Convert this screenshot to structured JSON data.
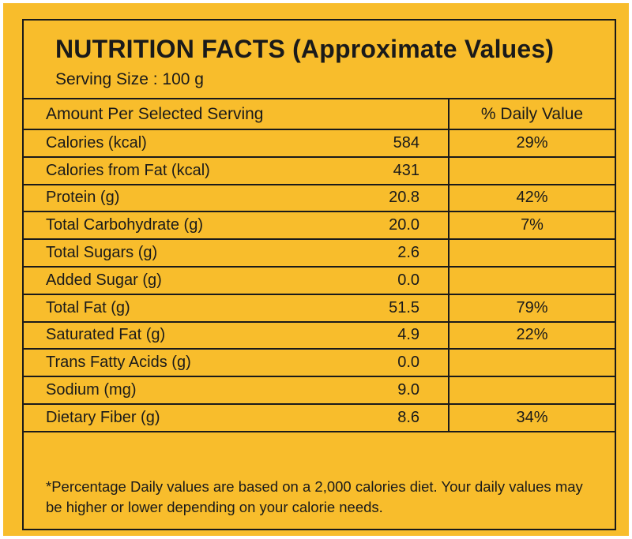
{
  "title": "NUTRITION FACTS (Approximate Values)",
  "serving_size": "Serving Size : 100 g",
  "table": {
    "header": {
      "label": "Amount Per Selected Serving",
      "daily_value": "% Daily Value"
    },
    "rows": [
      {
        "name": "Calories (kcal)",
        "amount": "584",
        "dv": "29%"
      },
      {
        "name": "Calories from Fat (kcal)",
        "amount": "431",
        "dv": ""
      },
      {
        "name": "Protein (g)",
        "amount": "20.8",
        "dv": "42%"
      },
      {
        "name": "Total Carbohydrate (g)",
        "amount": "20.0",
        "dv": "7%"
      },
      {
        "name": "Total Sugars (g)",
        "amount": "2.6",
        "dv": ""
      },
      {
        "name": "Added Sugar (g)",
        "amount": "0.0",
        "dv": ""
      },
      {
        "name": "Total Fat (g)",
        "amount": "51.5",
        "dv": "79%"
      },
      {
        "name": "Saturated Fat (g)",
        "amount": "4.9",
        "dv": "22%"
      },
      {
        "name": "Trans Fatty Acids (g)",
        "amount": "0.0",
        "dv": ""
      },
      {
        "name": "Sodium (mg)",
        "amount": "9.0",
        "dv": ""
      },
      {
        "name": "Dietary Fiber (g)",
        "amount": "8.6",
        "dv": "34%"
      }
    ]
  },
  "footnote": "*Percentage Daily values are based on a 2,000 calories diet. Your daily values may be higher or lower depending on your calorie needs.",
  "colors": {
    "background": "#f8bd2c",
    "text": "#1a1a1a"
  }
}
